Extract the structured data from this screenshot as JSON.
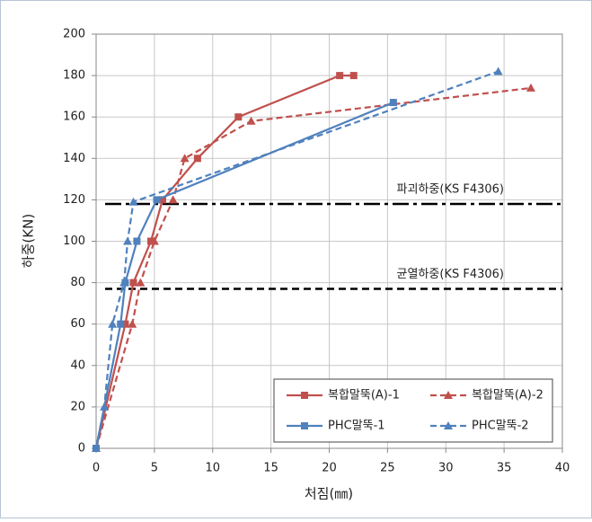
{
  "chart_data": {
    "type": "line",
    "x_label": "처짐(㎜)",
    "y_label": "하중(KN)",
    "xlim": [
      0,
      40
    ],
    "xticks": [
      0,
      5,
      10,
      15,
      20,
      25,
      30,
      35,
      40
    ],
    "ylim": [
      0,
      200
    ],
    "yticks": [
      0,
      20,
      40,
      60,
      80,
      100,
      120,
      140,
      160,
      180,
      200
    ],
    "grid": true,
    "legend": "lower right",
    "series": [
      {
        "name": "복합말뚝(A)-1",
        "color": "#c0504d",
        "dash": "solid",
        "marker": "square",
        "x": [
          0,
          2.5,
          3.2,
          4.7,
          5.7,
          8.7,
          12.2,
          20.9,
          22.1
        ],
        "values": [
          0,
          60,
          80,
          100,
          120,
          140,
          160,
          180,
          180
        ]
      },
      {
        "name": "복합말뚝(A)-2",
        "color": "#c0504d",
        "dash": "dashed",
        "marker": "triangle",
        "x": [
          0,
          3.1,
          3.8,
          5.0,
          6.6,
          7.6,
          13.3,
          37.3
        ],
        "values": [
          0,
          60,
          80,
          100,
          120,
          140,
          158,
          174
        ]
      },
      {
        "name": "PHC말뚝-1",
        "color": "#4f81bd",
        "dash": "solid",
        "marker": "square",
        "x": [
          0,
          2.1,
          2.5,
          3.5,
          5.2,
          25.5
        ],
        "values": [
          0,
          60,
          80,
          100,
          120,
          167
        ]
      },
      {
        "name": "PHC말뚝-2",
        "color": "#4f81bd",
        "dash": "dashed",
        "marker": "triangle",
        "x": [
          0,
          0.7,
          1.4,
          2.4,
          2.7,
          3.2,
          34.5
        ],
        "values": [
          0,
          20,
          60,
          80,
          100,
          119,
          182
        ]
      }
    ],
    "reference_lines": [
      {
        "label": "파괴하중(KS F4306)",
        "value": 118,
        "style": "dashdot"
      },
      {
        "label": "균열하중(KS F4306)",
        "value": 77,
        "style": "dashed"
      }
    ]
  }
}
